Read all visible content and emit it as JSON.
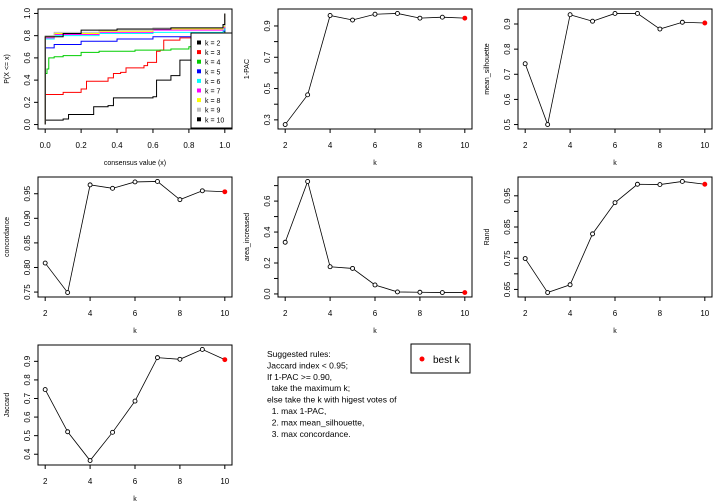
{
  "chart_data": [
    {
      "type": "line",
      "xlabel": "consensus value (x)",
      "ylabel": "P(X <= x)",
      "xlim": [
        0,
        1
      ],
      "ylim": [
        0,
        1
      ],
      "xticks": [
        "0.0",
        "0.2",
        "0.4",
        "0.6",
        "0.8",
        "1.0"
      ],
      "yticks": [
        "0.0",
        "0.2",
        "0.4",
        "0.6",
        "0.8",
        "1.0"
      ],
      "legend_position": "right",
      "series": [
        {
          "name": "k = 2",
          "color": "#000000",
          "x": [
            0,
            0,
            0.1,
            0.13,
            0.25,
            0.27,
            0.35,
            0.38,
            0.6,
            0.62,
            0.7,
            0.75,
            0.85,
            0.99,
            1
          ],
          "y": [
            0,
            0.04,
            0.05,
            0.09,
            0.09,
            0.16,
            0.17,
            0.24,
            0.25,
            0.4,
            0.44,
            0.58,
            0.62,
            0.65,
            1
          ]
        },
        {
          "name": "k = 3",
          "color": "#FF0000",
          "x": [
            0,
            0,
            0.1,
            0.2,
            0.23,
            0.35,
            0.38,
            0.42,
            0.45,
            0.55,
            0.57,
            0.62,
            0.64,
            0.66,
            0.75,
            0.85,
            0.99,
            1
          ],
          "y": [
            0,
            0.27,
            0.29,
            0.32,
            0.39,
            0.42,
            0.46,
            0.47,
            0.51,
            0.53,
            0.56,
            0.66,
            0.67,
            0.76,
            0.78,
            0.81,
            0.84,
            1
          ]
        },
        {
          "name": "k = 4",
          "color": "#00CD00",
          "x": [
            0,
            0,
            0.01,
            0.02,
            0.05,
            0.1,
            0.2,
            0.3,
            0.5,
            0.7,
            0.8,
            0.99,
            1
          ],
          "y": [
            0,
            0.46,
            0.5,
            0.6,
            0.61,
            0.62,
            0.65,
            0.66,
            0.67,
            0.68,
            0.7,
            0.72,
            1
          ]
        },
        {
          "name": "k = 5",
          "color": "#0000FF",
          "x": [
            0,
            0,
            0.05,
            0.2,
            0.4,
            0.6,
            0.9,
            0.99,
            1
          ],
          "y": [
            0,
            0.69,
            0.72,
            0.75,
            0.77,
            0.79,
            0.82,
            0.84,
            1
          ]
        },
        {
          "name": "k = 6",
          "color": "#00FFFF",
          "x": [
            0,
            0,
            0.05,
            0.3,
            0.6,
            0.99,
            1
          ],
          "y": [
            0,
            0.77,
            0.8,
            0.82,
            0.83,
            0.85,
            1
          ]
        },
        {
          "name": "k = 7",
          "color": "#FF00FF",
          "x": [
            0,
            0,
            0.05,
            0.3,
            0.6,
            0.99,
            1
          ],
          "y": [
            0,
            0.78,
            0.81,
            0.83,
            0.85,
            0.87,
            1
          ]
        },
        {
          "name": "k = 8",
          "color": "#FFFF00",
          "x": [
            0,
            0,
            0.05,
            0.3,
            0.6,
            0.99,
            1
          ],
          "y": [
            0,
            0.79,
            0.82,
            0.84,
            0.86,
            0.88,
            1
          ]
        },
        {
          "name": "k = 9",
          "color": "#BEBEBE",
          "x": [
            0,
            0,
            0.05,
            0.3,
            0.6,
            0.99,
            1
          ],
          "y": [
            0,
            0.8,
            0.83,
            0.85,
            0.87,
            0.89,
            1
          ]
        },
        {
          "name": "k = 10",
          "color": "#000000",
          "x": [
            0,
            0,
            0.1,
            0.2,
            0.4,
            0.7,
            0.99,
            1
          ],
          "y": [
            0,
            0.79,
            0.82,
            0.85,
            0.86,
            0.87,
            0.9,
            1
          ]
        }
      ]
    },
    {
      "type": "line",
      "xlabel": "k",
      "ylabel": "1-PAC",
      "x": [
        2,
        3,
        4,
        5,
        6,
        7,
        8,
        9,
        10
      ],
      "y": [
        0.27,
        0.46,
        0.967,
        0.938,
        0.975,
        0.98,
        0.95,
        0.956,
        0.95
      ],
      "xticks": [
        "2",
        "4",
        "6",
        "8",
        "10"
      ],
      "yticks": [
        "0.3",
        "0.5",
        "0.7",
        "0.9"
      ],
      "minor_yticks": [
        0.4,
        0.6,
        0.8
      ],
      "best_k": 10
    },
    {
      "type": "line",
      "xlabel": "k",
      "ylabel": "mean_silhouette",
      "x": [
        2,
        3,
        4,
        5,
        6,
        7,
        8,
        9,
        10
      ],
      "y": [
        0.742,
        0.5,
        0.937,
        0.911,
        0.942,
        0.942,
        0.88,
        0.907,
        0.904
      ],
      "xticks": [
        "2",
        "4",
        "6",
        "8",
        "10"
      ],
      "yticks": [
        "0.5",
        "0.6",
        "0.7",
        "0.8",
        "0.9"
      ],
      "minor_yticks": [],
      "best_k": 10
    },
    {
      "type": "line",
      "xlabel": "k",
      "ylabel": "concordance",
      "x": [
        2,
        3,
        4,
        5,
        6,
        7,
        8,
        9,
        10
      ],
      "y": [
        0.809,
        0.749,
        0.968,
        0.961,
        0.974,
        0.975,
        0.938,
        0.956,
        0.954
      ],
      "xticks": [
        "2",
        "4",
        "6",
        "8",
        "10"
      ],
      "yticks": [
        "0.75",
        "0.80",
        "0.85",
        "0.90",
        "0.95"
      ],
      "minor_yticks": [],
      "best_k": 10
    },
    {
      "type": "line",
      "xlabel": "k",
      "ylabel": "area_increased",
      "x": [
        2,
        3,
        4,
        5,
        6,
        7,
        8,
        9,
        10
      ],
      "y": [
        0.334,
        0.727,
        0.176,
        0.165,
        0.058,
        0.013,
        0.011,
        0.009,
        0.009
      ],
      "xticks": [
        "2",
        "4",
        "6",
        "8",
        "10"
      ],
      "yticks": [
        "0.0",
        "0.2",
        "0.4",
        "0.6"
      ],
      "minor_yticks": [
        0.1,
        0.3,
        0.5,
        0.7
      ],
      "best_k": 10
    },
    {
      "type": "line",
      "xlabel": "k",
      "ylabel": "Rand",
      "x": [
        2,
        3,
        4,
        5,
        6,
        7,
        8,
        9,
        10
      ],
      "y": [
        0.749,
        0.64,
        0.665,
        0.828,
        0.928,
        0.987,
        0.986,
        0.996,
        0.987
      ],
      "xticks": [
        "2",
        "4",
        "6",
        "8",
        "10"
      ],
      "yticks": [
        "0.65",
        "0.75",
        "0.85",
        "0.95"
      ],
      "minor_yticks": [
        0.7,
        0.8,
        0.9
      ],
      "best_k": 10
    },
    {
      "type": "line",
      "xlabel": "k",
      "ylabel": "Jaccard",
      "x": [
        2,
        3,
        4,
        5,
        6,
        7,
        8,
        9,
        10
      ],
      "y": [
        0.748,
        0.521,
        0.366,
        0.518,
        0.686,
        0.92,
        0.911,
        0.964,
        0.909
      ],
      "xticks": [
        "2",
        "4",
        "6",
        "8",
        "10"
      ],
      "yticks": [
        "0.4",
        "0.5",
        "0.6",
        "0.7",
        "0.8",
        "0.9"
      ],
      "minor_yticks": [],
      "best_k": 10
    }
  ],
  "colors": {
    "best_k": "#FF0000",
    "line": "#000000"
  },
  "rules": [
    "Suggested rules:",
    "Jaccard index < 0.95;",
    "If 1-PAC >= 0.90,",
    "  take the maximum k;",
    "else take the k with higest votes of",
    "  1. max 1-PAC,",
    "  2. max mean_silhouette,",
    "  3. max concordance."
  ],
  "best_k_legend": "best k"
}
